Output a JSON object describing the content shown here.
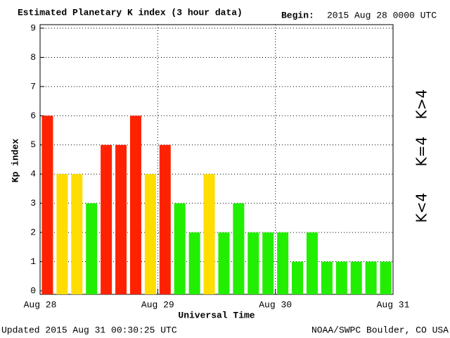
{
  "chart_data": {
    "type": "bar",
    "title": "Estimated Planetary K index (3 hour data)",
    "begin_label": "Begin:",
    "begin": "2015 Aug 28 0000 UTC",
    "ylabel": "Kp index",
    "xlabel": "Universal Time",
    "updated": "Updated 2015 Aug 31 00:30:25 UTC",
    "source": "NOAA/SWPC Boulder, CO USA",
    "categories": [
      null,
      null,
      null,
      null,
      null,
      null,
      null,
      null,
      null,
      null,
      null,
      null,
      null,
      null,
      null,
      null,
      null,
      null,
      null,
      null,
      null,
      null,
      null,
      null
    ],
    "values": [
      6,
      4,
      4,
      3,
      5,
      5,
      6,
      4,
      5,
      3,
      2,
      4,
      2,
      3,
      2,
      2,
      2,
      1,
      2,
      1,
      1,
      1,
      1,
      1
    ],
    "colors": [
      "#ff2200",
      "#ffdd00",
      "#ffdd00",
      "#22ee00",
      "#ff2200",
      "#ff2200",
      "#ff2200",
      "#ffdd00",
      "#ff2200",
      "#22ee00",
      "#22ee00",
      "#ffdd00",
      "#22ee00",
      "#22ee00",
      "#22ee00",
      "#22ee00",
      "#22ee00",
      "#22ee00",
      "#22ee00",
      "#22ee00",
      "#22ee00",
      "#22ee00",
      "#22ee00",
      "#22ee00"
    ],
    "ylim": [
      0,
      9
    ],
    "yticks": [
      0,
      1,
      2,
      3,
      4,
      5,
      6,
      7,
      8,
      9
    ],
    "xlim": [
      0,
      24
    ],
    "xticks": [
      {
        "value": 0,
        "label": "Aug 28"
      },
      {
        "value": 8,
        "label": "Aug 29"
      },
      {
        "value": 16,
        "label": "Aug 30"
      },
      {
        "value": 24,
        "label": "Aug 31"
      }
    ],
    "grid": true,
    "legend": [
      {
        "label": "K<4",
        "color": "#22ee00"
      },
      {
        "label": "K=4",
        "color": "#ffdd00"
      },
      {
        "label": "K>4",
        "color": "#ff2200"
      }
    ]
  }
}
